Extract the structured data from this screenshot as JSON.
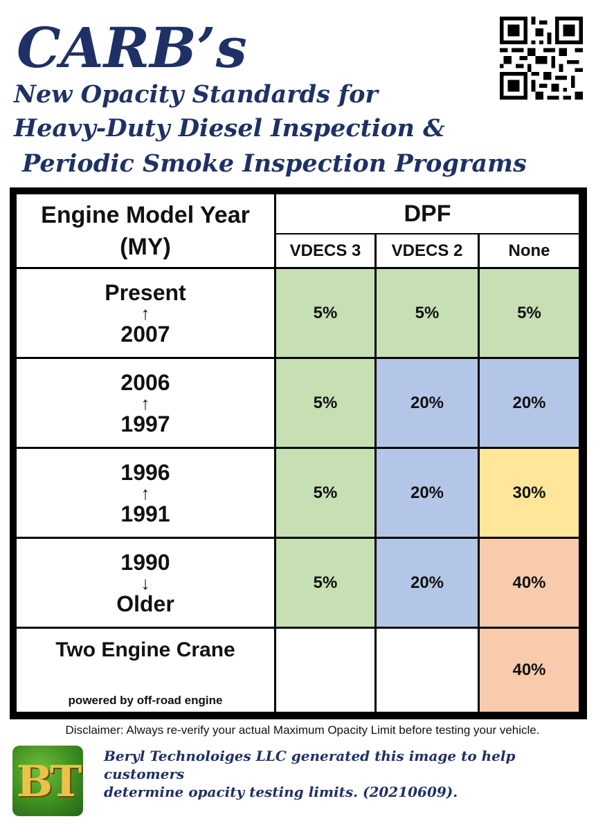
{
  "header": {
    "title": "CARB’s",
    "subtitle_lines": [
      "New Opacity Standards for",
      "Heavy-Duty Diesel Inspection &",
      "Periodic Smoke Inspection Programs"
    ]
  },
  "qr_code": {
    "icon": "qr-code"
  },
  "table": {
    "header_left_line1": "Engine Model Year",
    "header_left_line2": "(MY)",
    "group_header": "DPF",
    "columns": [
      "VDECS 3",
      "VDECS 2",
      "None"
    ],
    "rows": [
      {
        "top": "Present",
        "arrow": "↑",
        "bottom": "2007",
        "values": [
          "5%",
          "5%",
          "5%"
        ],
        "colors": [
          "#c6e0b4",
          "#c6e0b4",
          "#c6e0b4"
        ]
      },
      {
        "top": "2006",
        "arrow": "↑",
        "bottom": "1997",
        "values": [
          "5%",
          "20%",
          "20%"
        ],
        "colors": [
          "#c6e0b4",
          "#b4c6e7",
          "#b4c6e7"
        ]
      },
      {
        "top": "1996",
        "arrow": "↑",
        "bottom": "1991",
        "values": [
          "5%",
          "20%",
          "30%"
        ],
        "colors": [
          "#c6e0b4",
          "#b4c6e7",
          "#ffe699"
        ]
      },
      {
        "top": "1990",
        "arrow": "↓",
        "bottom": "Older",
        "values": [
          "5%",
          "20%",
          "40%"
        ],
        "colors": [
          "#c6e0b4",
          "#b4c6e7",
          "#f8cbad"
        ]
      }
    ],
    "crane_row": {
      "title": "Two Engine Crane",
      "subtitle": "powered by off-road engine",
      "values": [
        "",
        "",
        "40%"
      ],
      "colors": [
        "#ffffff",
        "#ffffff",
        "#f8cbad"
      ]
    }
  },
  "disclaimer": "Disclaimer: Always re-verify your actual Maximum Opacity Limit before testing your vehicle.",
  "footer": {
    "logo_text": "BT",
    "line1": "Beryl Technoloiges LLC generated this image to help customers",
    "line2": "determine opacity testing limits. (20210609)."
  }
}
